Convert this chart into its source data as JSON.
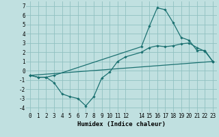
{
  "xlabel": "Humidex (Indice chaleur)",
  "bg_color": "#c0e0e0",
  "grid_color": "#90c0c0",
  "line_color": "#1a7070",
  "xlim": [
    -0.5,
    23.5
  ],
  "ylim": [
    -4.5,
    7.5
  ],
  "xticks": [
    0,
    1,
    2,
    3,
    4,
    5,
    6,
    7,
    8,
    9,
    10,
    11,
    12,
    14,
    15,
    16,
    17,
    18,
    19,
    20,
    21,
    22,
    23
  ],
  "yticks": [
    -4,
    -3,
    -2,
    -1,
    0,
    1,
    2,
    3,
    4,
    5,
    6,
    7
  ],
  "line1_x": [
    0,
    1,
    2,
    3,
    4,
    5,
    6,
    7,
    8,
    9,
    10,
    11,
    12,
    14,
    15,
    16,
    17,
    18,
    19,
    20,
    21,
    22,
    23
  ],
  "line1_y": [
    -0.5,
    -0.7,
    -0.7,
    -1.3,
    -2.5,
    -2.8,
    -3.0,
    -3.8,
    -2.8,
    -0.8,
    -0.15,
    1.0,
    1.5,
    2.0,
    2.5,
    2.7,
    2.6,
    2.7,
    2.9,
    3.0,
    2.5,
    2.1,
    1.0
  ],
  "line2_x": [
    0,
    1,
    2,
    3,
    14,
    15,
    16,
    17,
    18,
    19,
    20,
    21,
    22,
    23
  ],
  "line2_y": [
    -0.5,
    -0.7,
    -0.7,
    -0.5,
    2.6,
    4.8,
    6.8,
    6.6,
    5.2,
    3.6,
    3.3,
    2.2,
    2.2,
    1.0
  ],
  "line3_x": [
    0,
    23
  ],
  "line3_y": [
    -0.5,
    1.0
  ],
  "tick_fontsize": 5.5,
  "xlabel_fontsize": 6.5
}
